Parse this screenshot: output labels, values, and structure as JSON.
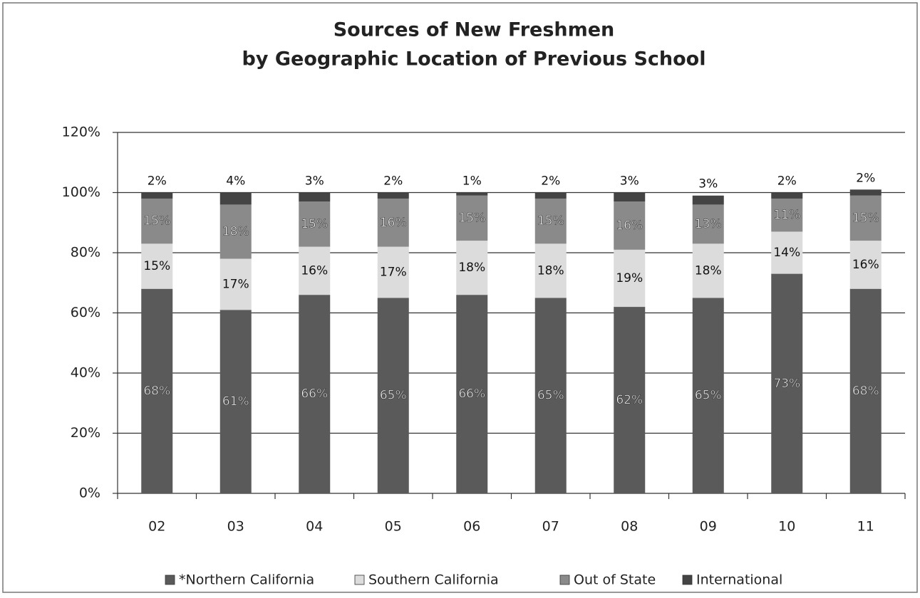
{
  "chart_data": {
    "type": "stacked_bar",
    "title": "Sources of New Freshmen",
    "subtitle": "by Geographic Location of Previous School",
    "categories": [
      "02",
      "03",
      "04",
      "05",
      "06",
      "07",
      "08",
      "09",
      "10",
      "11"
    ],
    "series": [
      {
        "name": "*Northern California",
        "color": "#5a5a5a",
        "label_color": "#ffffff",
        "values": [
          68,
          61,
          66,
          65,
          66,
          65,
          62,
          65,
          73,
          68
        ],
        "value_labels": [
          "68%",
          "61%",
          "66%",
          "65%",
          "66%",
          "65%",
          "62%",
          "65%",
          "73%",
          "68%"
        ]
      },
      {
        "name": "Southern California",
        "color": "#dcdcdc",
        "label_color": "#111111",
        "values": [
          15,
          17,
          16,
          17,
          18,
          18,
          19,
          18,
          14,
          16
        ],
        "value_labels": [
          "15%",
          "17%",
          "16%",
          "17%",
          "18%",
          "18%",
          "19%",
          "18%",
          "14%",
          "16%"
        ]
      },
      {
        "name": "Out of State",
        "color": "#8a8a8a",
        "label_color": "#ffffff",
        "values": [
          15,
          18,
          15,
          16,
          15,
          15,
          16,
          13,
          11,
          15
        ],
        "value_labels": [
          "15%",
          "18%",
          "15%",
          "16%",
          "15%",
          "15%",
          "16%",
          "13%",
          "11%",
          "15%"
        ]
      },
      {
        "name": "International",
        "color": "#444444",
        "label_color": "#111111",
        "values": [
          2,
          4,
          3,
          2,
          1,
          2,
          3,
          3,
          2,
          2
        ],
        "value_labels": [
          "2%",
          "4%",
          "3%",
          "2%",
          "1%",
          "2%",
          "3%",
          "3%",
          "2%",
          "2%"
        ]
      }
    ],
    "ylim": [
      0,
      120
    ],
    "yticks": [
      {
        "value": 0,
        "label": "0%"
      },
      {
        "value": 20,
        "label": "20%"
      },
      {
        "value": 40,
        "label": "40%"
      },
      {
        "value": 60,
        "label": "60%"
      },
      {
        "value": 80,
        "label": "80%"
      },
      {
        "value": 100,
        "label": "100%"
      },
      {
        "value": 120,
        "label": "120%"
      }
    ],
    "grid": true,
    "legend": "bottom"
  }
}
